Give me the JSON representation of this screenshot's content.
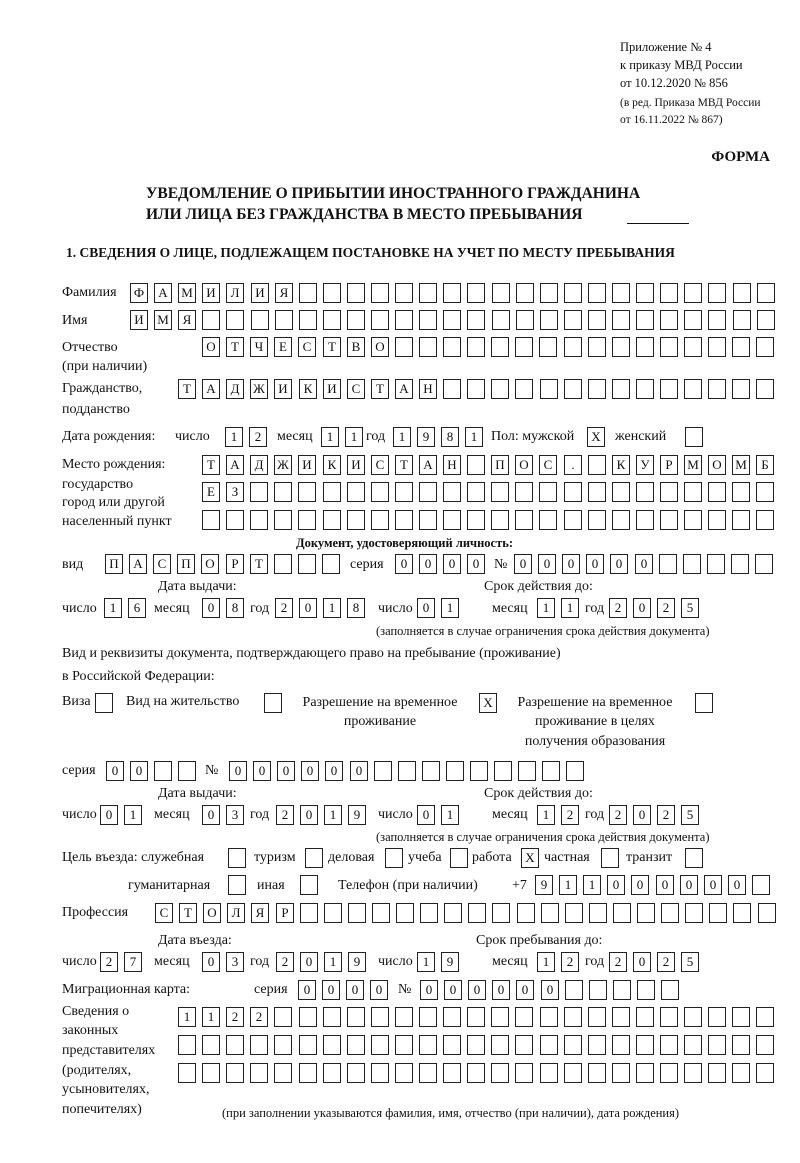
{
  "header": {
    "annex": "Приложение № 4",
    "order": "к приказу МВД России",
    "order_date": "от 10.12.2020 № 856",
    "revision_1": "(в ред. Приказа МВД России",
    "revision_2": "от 16.11.2022 № 867)",
    "form_label": "ФОРМА",
    "title_1": "УВЕДОМЛЕНИЕ О ПРИБЫТИИ ИНОСТРАННОГО ГРАЖДАНИНА",
    "title_2": "ИЛИ ЛИЦА БЕЗ ГРАЖДАНСТВА В МЕСТО ПРЕБЫВАНИЯ",
    "section_1": "1. СВЕДЕНИЯ О ЛИЦЕ, ПОДЛЕЖАЩЕМ ПОСТАНОВКЕ НА УЧЕТ ПО МЕСТУ ПРЕБЫВАНИЯ"
  },
  "labels": {
    "surname": "Фамилия",
    "name": "Имя",
    "patronymic_1": "Отчество",
    "patronymic_2": "(при наличии)",
    "citizenship_1": "Гражданство,",
    "citizenship_2": "подданство",
    "birth_date": "Дата рождения:",
    "day": "число",
    "month": "месяц",
    "year": "год",
    "sex": "Пол: мужской",
    "female": "женский",
    "birthplace_1": "Место рождения:",
    "birthplace_2": "государство",
    "birthplace_3": "город или другой",
    "birthplace_4": "населенный пункт",
    "id_doc": "Документ, удостоверяющий личность:",
    "kind": "вид",
    "series": "серия",
    "number": "№",
    "issue_date": "Дата выдачи:",
    "valid_until": "Срок действия до:",
    "validity_note": "(заполняется в случае ограничения срока действия документа)",
    "stay_doc_1": "Вид и реквизиты документа, подтверждающего право на пребывание (проживание)",
    "stay_doc_2": "в Российской Федерации:",
    "visa": "Виза",
    "residence_permit": "Вид на жительство",
    "temp_residence_1": "Разрешение на временное",
    "temp_residence_2": "проживание",
    "temp_edu_1": "Разрешение на временное",
    "temp_edu_2": "проживание в целях",
    "temp_edu_3": "получения образования",
    "purpose": "Цель въезда: служебная",
    "tourism": "туризм",
    "business": "деловая",
    "study": "учеба",
    "work": "работа",
    "private": "частная",
    "transit": "транзит",
    "humanitarian": "гуманитарная",
    "other": "иная",
    "phone": "Телефон (при наличии)",
    "phone_prefix": "+7",
    "profession": "Профессия",
    "entry_date": "Дата въезда:",
    "stay_until": "Срок пребывания до:",
    "migration_card": "Миграционная карта:",
    "reps_1": "Сведения о",
    "reps_2": "законных",
    "reps_3": "представителях",
    "reps_4": "(родителях,",
    "reps_5": "усыновителях,",
    "reps_6": "попечителях)",
    "reps_note": "(при заполнении указываются фамилия, имя, отчество (при наличии), дата рождения)"
  },
  "fields": {
    "surname": "ФАМИЛИЯ",
    "name": "ИМЯ",
    "patronymic": "ОТЧЕСТВО",
    "citizenship": "ТАДЖИКИСТАН",
    "birth_day": "12",
    "birth_month": "11",
    "birth_year": "1981",
    "sex_male": "X",
    "sex_female": "",
    "birthplace_1": "ТАДЖИКИСТАН ПОС. КУРМОМБ",
    "birthplace_2": "ЕЗ",
    "birthplace_3": "",
    "id_kind": "ПАСПОРТ",
    "id_series": "0000",
    "id_number": "000000",
    "id_issue_day": "16",
    "id_issue_month": "08",
    "id_issue_year": "2018",
    "id_valid_day": "01",
    "id_valid_month": "11",
    "id_valid_year": "2025",
    "visa": "",
    "residence_permit": "",
    "temp_residence": "X",
    "temp_edu": "",
    "stay_series": "00",
    "stay_number": "000000",
    "stay_issue_day": "01",
    "stay_issue_month": "03",
    "stay_issue_year": "2019",
    "stay_valid_day": "01",
    "stay_valid_month": "12",
    "stay_valid_year": "2025",
    "purpose_official": "",
    "purpose_tourism": "",
    "purpose_business": "",
    "purpose_study": "",
    "purpose_work": "X",
    "purpose_private": "",
    "purpose_transit": "",
    "purpose_humanitarian": "",
    "purpose_other": "",
    "phone": "911000000",
    "profession": "СТОЛЯР",
    "entry_day": "27",
    "entry_month": "03",
    "entry_year": "2019",
    "stay_until_day": "19",
    "stay_until_month": "12",
    "stay_until_year": "2025",
    "mc_series": "0000",
    "mc_number": "000000",
    "reps_1": "1122",
    "reps_2": "",
    "reps_3": ""
  }
}
